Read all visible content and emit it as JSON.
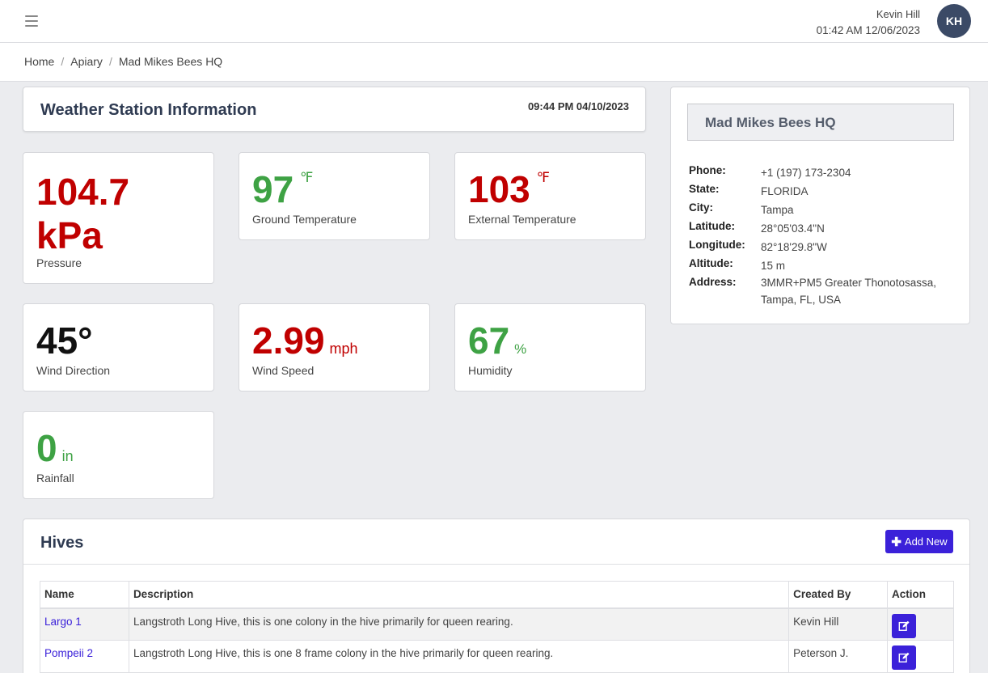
{
  "header": {
    "menu_icon": "hamburger-icon",
    "user_name": "Kevin Hill",
    "datetime": "01:42 AM 12/06/2023",
    "avatar_initials": "KH"
  },
  "breadcrumb": {
    "items": [
      "Home",
      "Apiary",
      "Mad Mikes Bees HQ"
    ],
    "separator": "/"
  },
  "weather": {
    "title": "Weather Station Information",
    "timestamp": "09:44 PM 04/10/2023",
    "metrics": {
      "pressure": {
        "value": "104.7",
        "unit": "kPa",
        "label": "Pressure",
        "color": "#c00000"
      },
      "ground_temp": {
        "value": "97",
        "unit": "℉",
        "label": "Ground Temperature",
        "color": "#3ea244"
      },
      "external_temp": {
        "value": "103",
        "unit": "℉",
        "label": "External Temperature",
        "color": "#c00000"
      },
      "wind_direction": {
        "value": "45°",
        "label": "Wind Direction",
        "color": "#111111"
      },
      "wind_speed": {
        "value": "2.99",
        "unit": "mph",
        "label": "Wind Speed",
        "color": "#c00000"
      },
      "humidity": {
        "value": "67",
        "unit": "%",
        "label": "Humidity",
        "color": "#3ea244"
      },
      "rainfall": {
        "value": "0",
        "unit": "in",
        "label": "Rainfall",
        "color": "#3ea244"
      }
    }
  },
  "apiary_info": {
    "title": "Mad Mikes Bees HQ",
    "rows": [
      {
        "key": "Phone:",
        "value": "+1 (197) 173-2304"
      },
      {
        "key": "State:",
        "value": "FLORIDA"
      },
      {
        "key": "City:",
        "value": "Tampa"
      },
      {
        "key": "Latitude:",
        "value": "28°05'03.4\"N"
      },
      {
        "key": "Longitude:",
        "value": "82°18'29.8\"W"
      },
      {
        "key": "Altitude:",
        "value": "15 m"
      },
      {
        "key": "Address:",
        "value": "3MMR+PM5 Greater Thonotosassa, Tampa, FL, USA"
      }
    ]
  },
  "hives": {
    "title": "Hives",
    "add_button": "Add New",
    "add_icon": "plus-icon",
    "edit_icon": "edit-icon",
    "columns": [
      "Name",
      "Description",
      "Created By",
      "Action"
    ],
    "rows": [
      {
        "name": "Largo 1",
        "description": "Langstroth Long Hive, this is one colony in the hive primarily for queen rearing.",
        "created_by": "Kevin Hill"
      },
      {
        "name": "Pompeii 2",
        "description": "Langstroth Long Hive, this is one 8 frame colony in the hive primarily for queen rearing.",
        "created_by": "Peterson J."
      }
    ]
  },
  "colors": {
    "accent": "#3b21d9",
    "danger": "#c00000",
    "ok": "#3ea244",
    "avatar_bg": "#3b4a66"
  }
}
